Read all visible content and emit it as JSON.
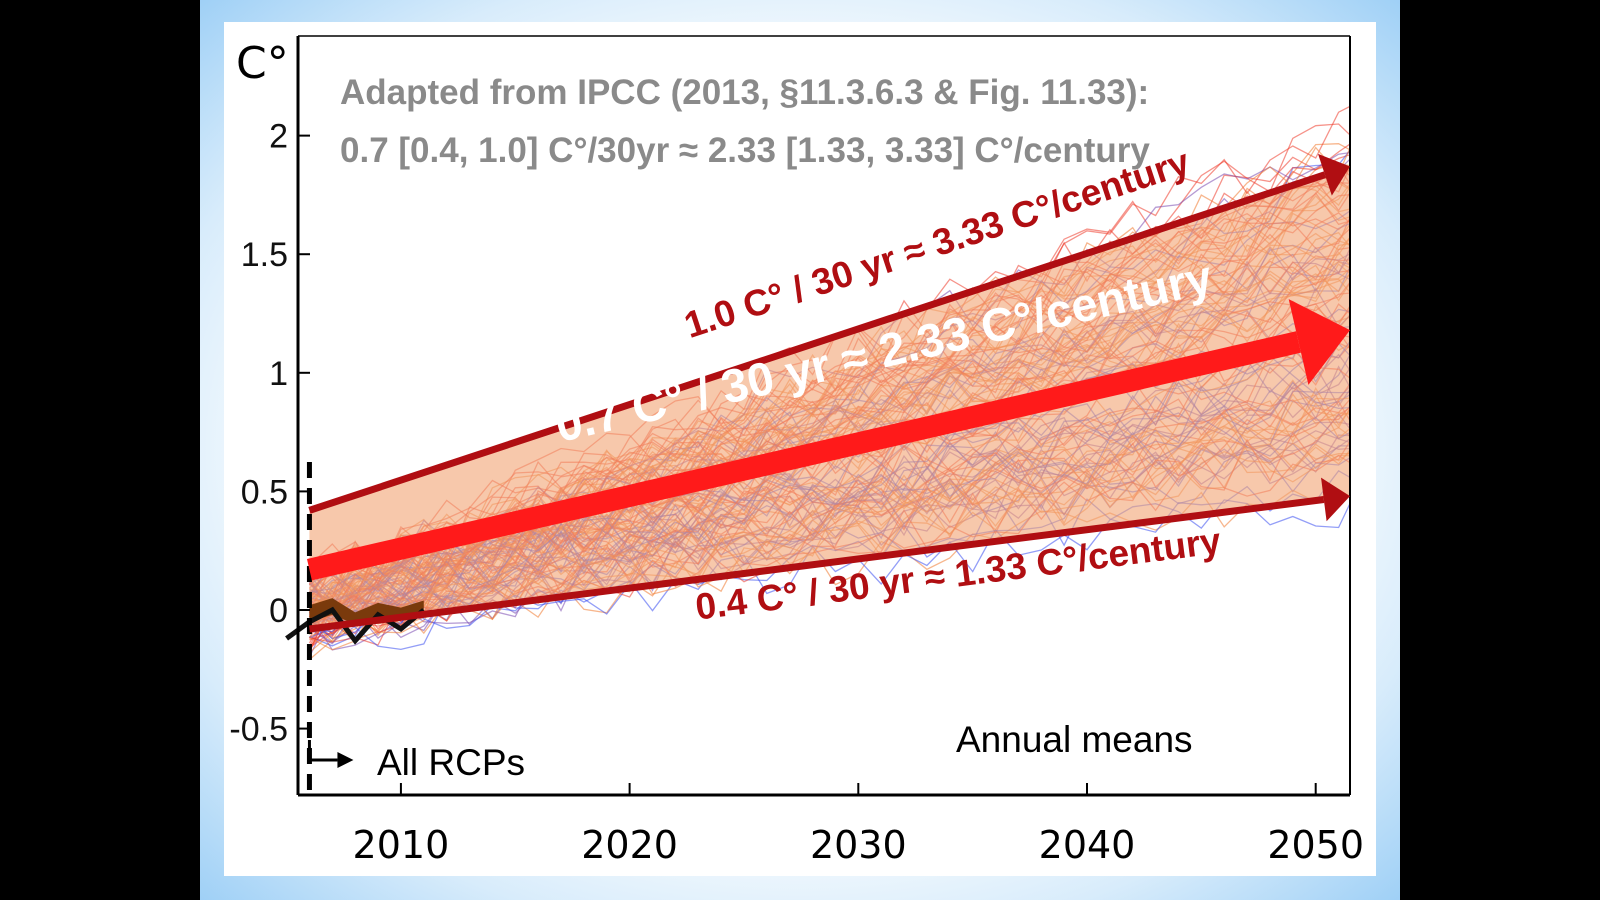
{
  "header": {
    "unit_label": "C°",
    "citation_line1": "Adapted from IPCC (2013, §11.3.6.3 & Fig. 11.33):",
    "citation_line2": "0.7 [0.4, 1.0] C°/30yr ≈ 2.33 [1.33, 3.33] C°/century"
  },
  "labels": {
    "rcp": "All RCPs",
    "means": "Annual means"
  },
  "colors": {
    "trend_dark": "#b00e12",
    "trend_central": "#ff1a1a",
    "band_fill": "#f2a777",
    "ensemble_red": "#ee3b2a",
    "ensemble_orange": "#f07a2f",
    "ensemble_blue": "#3b4ff0",
    "ensemble_purple": "#7a4ab0",
    "cite_gray": "#8a8a8a"
  },
  "chart_data": {
    "type": "line",
    "xlim": [
      2005.5,
      2051.5
    ],
    "ylim": [
      -0.78,
      2.42
    ],
    "x_ticks": [
      "2010",
      "2020",
      "2030",
      "2040",
      "2050"
    ],
    "x_tick_values": [
      2010,
      2020,
      2030,
      2040,
      2050
    ],
    "y_ticks": [
      "-0.5",
      "0",
      "0.5",
      "1",
      "1.5",
      "2"
    ],
    "y_tick_values": [
      -0.5,
      0,
      0.5,
      1,
      1.5,
      2
    ],
    "start_marker_x": 2006,
    "assessed_band": {
      "x": [
        2006,
        2051.5
      ],
      "lower": [
        -0.08,
        0.48
      ],
      "upper": [
        0.42,
        1.87
      ]
    },
    "trends": [
      {
        "label": "1.0 C° / 30 yr ≈ 3.33 C°/century",
        "x": [
          2006,
          2051.5
        ],
        "y": [
          0.42,
          1.87
        ],
        "style": "upper"
      },
      {
        "label": "0.7 C° / 30 yr ≈ 2.33 C°/century",
        "x": [
          2006,
          2051.5
        ],
        "y": [
          0.17,
          1.18
        ],
        "style": "central"
      },
      {
        "label": "0.4 C° / 30 yr ≈ 1.33 C°/century",
        "x": [
          2006,
          2051.5
        ],
        "y": [
          -0.08,
          0.48
        ],
        "style": "lower"
      }
    ],
    "observations": {
      "x": [
        2005,
        2006,
        2007,
        2008,
        2009,
        2010,
        2011
      ],
      "y": [
        -0.12,
        -0.05,
        0.0,
        -0.13,
        -0.02,
        -0.08,
        0.0
      ]
    },
    "observation_band": {
      "x": [
        2006,
        2007,
        2008,
        2009,
        2010,
        2011
      ],
      "lower": [
        -0.05,
        -0.02,
        -0.06,
        -0.04,
        -0.03,
        -0.01
      ],
      "upper": [
        0.02,
        0.05,
        -0.01,
        0.03,
        0.01,
        0.04
      ]
    }
  }
}
